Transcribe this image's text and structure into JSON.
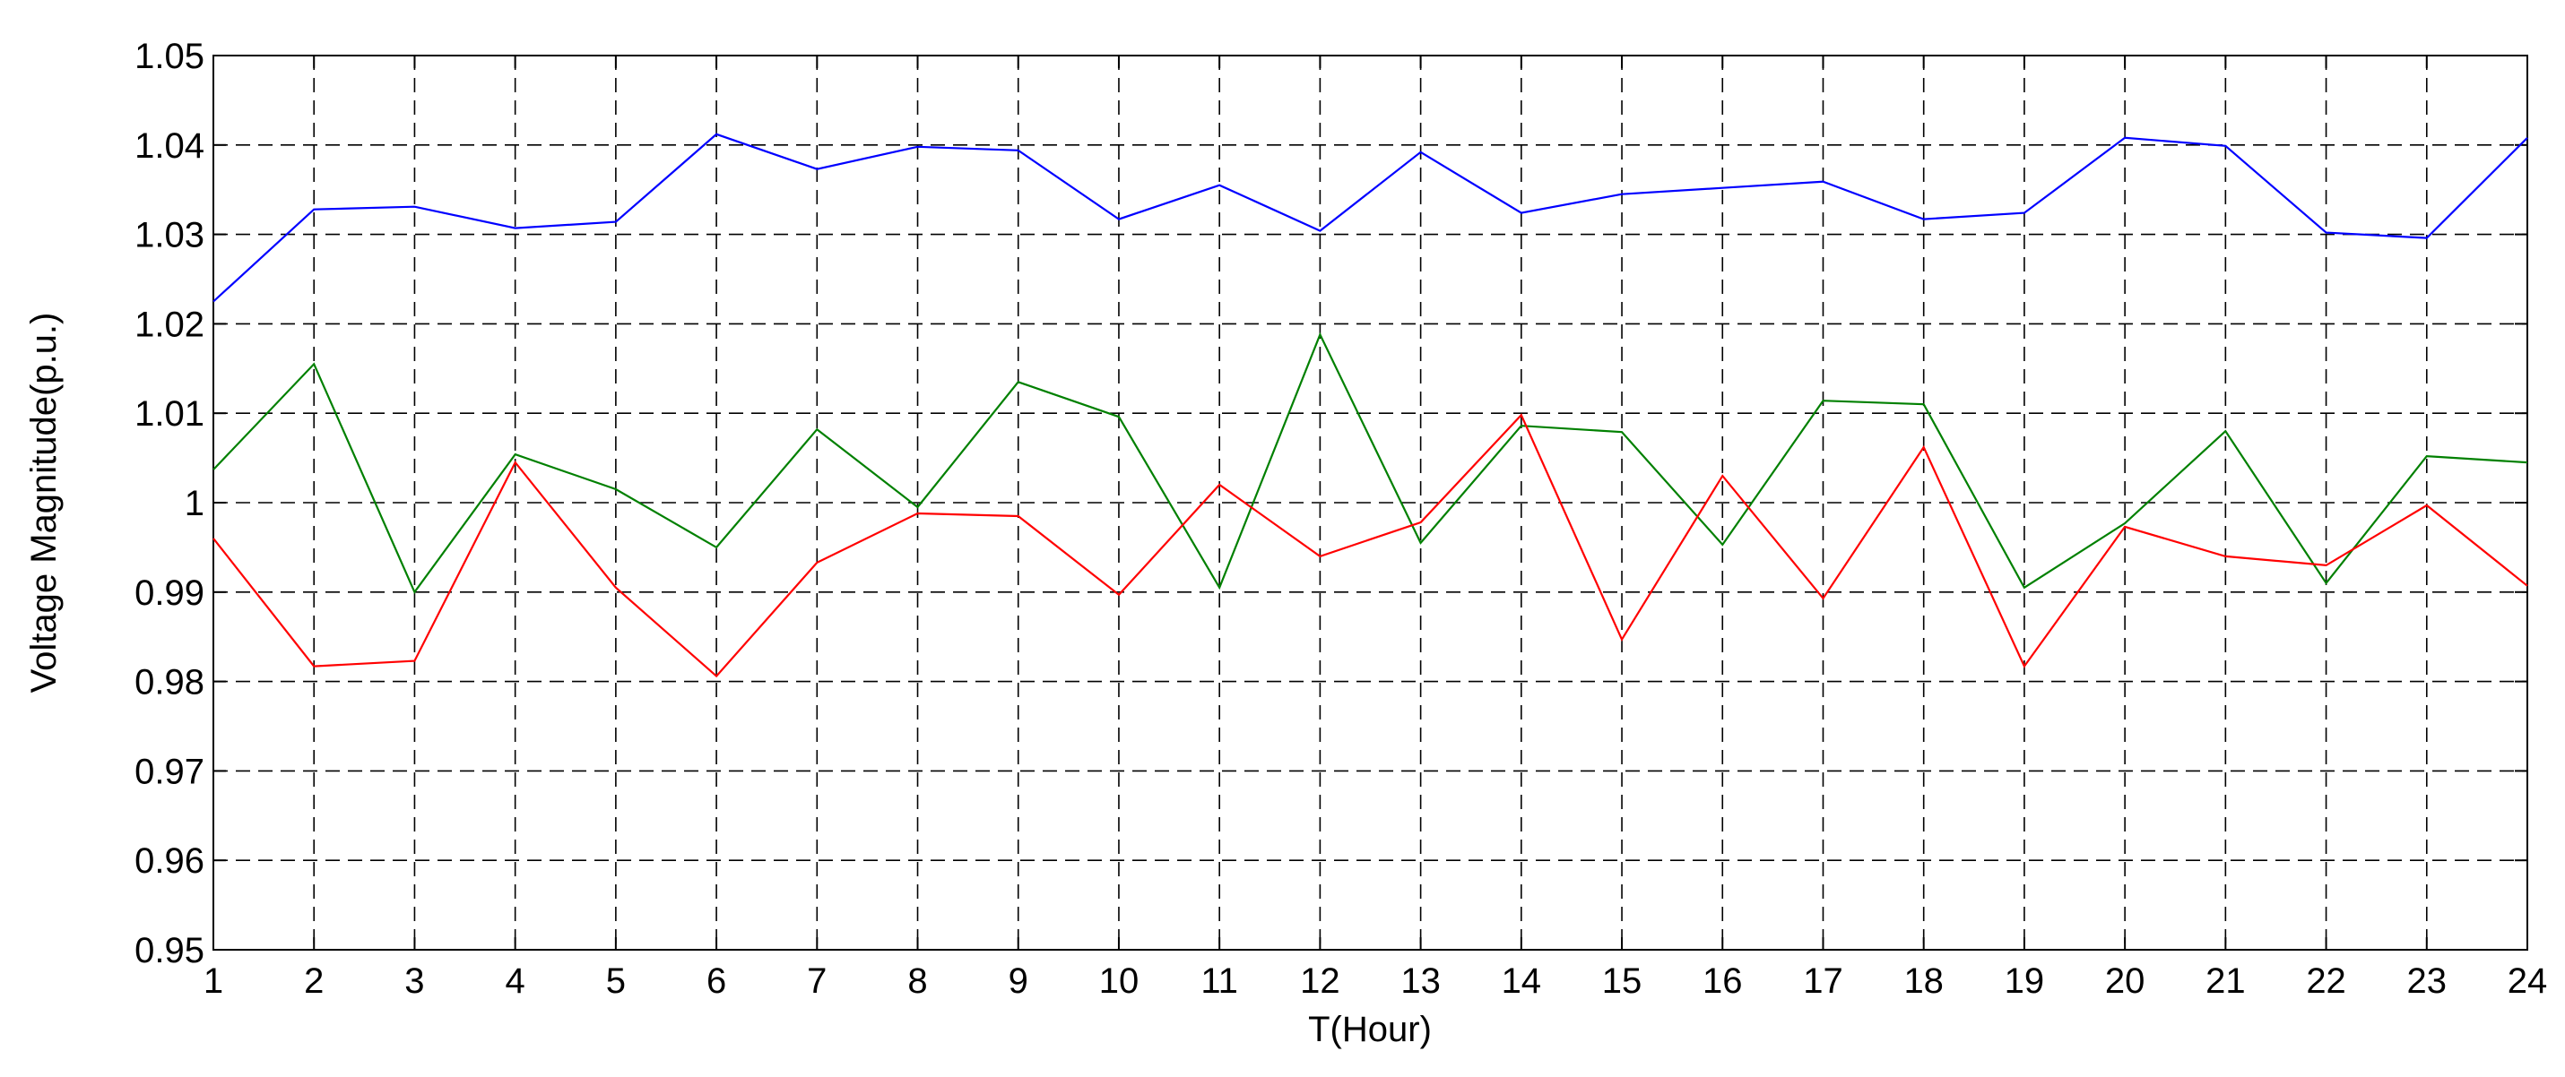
{
  "chart_data": {
    "type": "line",
    "x_label": "T(Hour)",
    "y_label": "Voltage Magnitude(p.u.)",
    "x": [
      1,
      2,
      3,
      4,
      5,
      6,
      7,
      8,
      9,
      10,
      11,
      12,
      13,
      14,
      15,
      16,
      17,
      18,
      19,
      20,
      21,
      22,
      23,
      24
    ],
    "xlim": [
      1,
      24
    ],
    "xticks": [
      1,
      2,
      3,
      4,
      5,
      6,
      7,
      8,
      9,
      10,
      11,
      12,
      13,
      14,
      15,
      16,
      17,
      18,
      19,
      20,
      21,
      22,
      23,
      24
    ],
    "ylim": [
      0.95,
      1.05
    ],
    "yticks": [
      0.95,
      0.96,
      0.97,
      0.98,
      0.99,
      1,
      1.01,
      1.02,
      1.03,
      1.04,
      1.05
    ],
    "grid": true,
    "series": [
      {
        "color": "#0000ff",
        "values": [
          1.0225,
          1.0328,
          1.0331,
          1.0307,
          1.0314,
          1.0412,
          1.0373,
          1.0398,
          1.0394,
          1.0317,
          1.0355,
          1.0304,
          1.0392,
          1.0324,
          1.0345,
          1.0352,
          1.0359,
          1.0317,
          1.0324,
          1.0408,
          1.0399,
          1.0302,
          1.0296,
          1.0408
        ]
      },
      {
        "color": "#008000",
        "values": [
          1.0037,
          1.0155,
          0.99,
          1.0054,
          1.0015,
          0.995,
          1.0082,
          0.9995,
          1.0135,
          1.0096,
          0.9905,
          1.0188,
          0.9955,
          1.0086,
          1.0079,
          0.9953,
          1.0114,
          1.011,
          0.9905,
          0.9977,
          1.008,
          0.991,
          1.0052,
          1.0045
        ]
      },
      {
        "color": "#ff0000",
        "values": [
          0.996,
          0.9817,
          0.9823,
          1.0045,
          0.9905,
          0.9806,
          0.9933,
          0.9988,
          0.9985,
          0.9897,
          1.002,
          0.994,
          0.9978,
          1.0098,
          0.9847,
          1.003,
          0.9893,
          1.0062,
          0.9817,
          0.9973,
          0.994,
          0.993,
          0.9997,
          0.9907
        ]
      }
    ]
  }
}
